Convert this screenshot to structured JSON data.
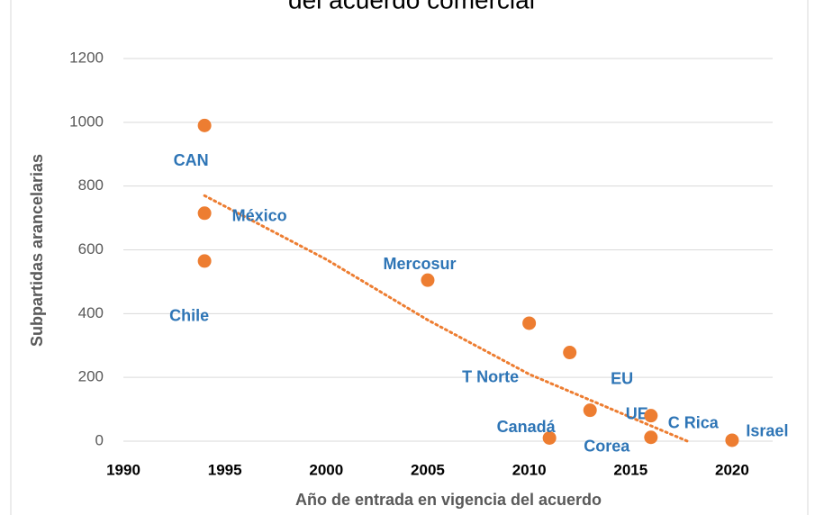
{
  "chart_data": {
    "type": "scatter",
    "title": "del acuerdo comercial",
    "x_label": "Año de entrada en vigencia del acuerdo",
    "y_label": "Subpartidas arancelarias",
    "xlim": [
      1990,
      2022
    ],
    "xticks": [
      1990,
      1995,
      2000,
      2005,
      2010,
      2015,
      2020
    ],
    "ylim": [
      0,
      1200
    ],
    "yticks": [
      0,
      200,
      400,
      600,
      800,
      1000,
      1200
    ],
    "grid": true,
    "series": [
      {
        "color": "#ed7d31",
        "label_color": "#2e75b6",
        "x": [
          1994,
          1994,
          1994,
          2005,
          2010,
          2012,
          2013,
          2011,
          2016,
          2016,
          2020
        ],
        "values": [
          990,
          715,
          565,
          505,
          370,
          278,
          97,
          10,
          12,
          80,
          3
        ],
        "labels": [
          "CAN",
          "México",
          "Chile",
          "Mercosur",
          "T Norte",
          "EU",
          "UE",
          "Canadá",
          "Corea",
          "C Rica",
          "Israel"
        ]
      }
    ],
    "trendline": {
      "color": "#ed7d31",
      "x": [
        1994,
        2000,
        2005,
        2010,
        2015,
        2017.8
      ],
      "values": [
        770,
        570,
        380,
        210,
        75,
        0
      ]
    }
  }
}
